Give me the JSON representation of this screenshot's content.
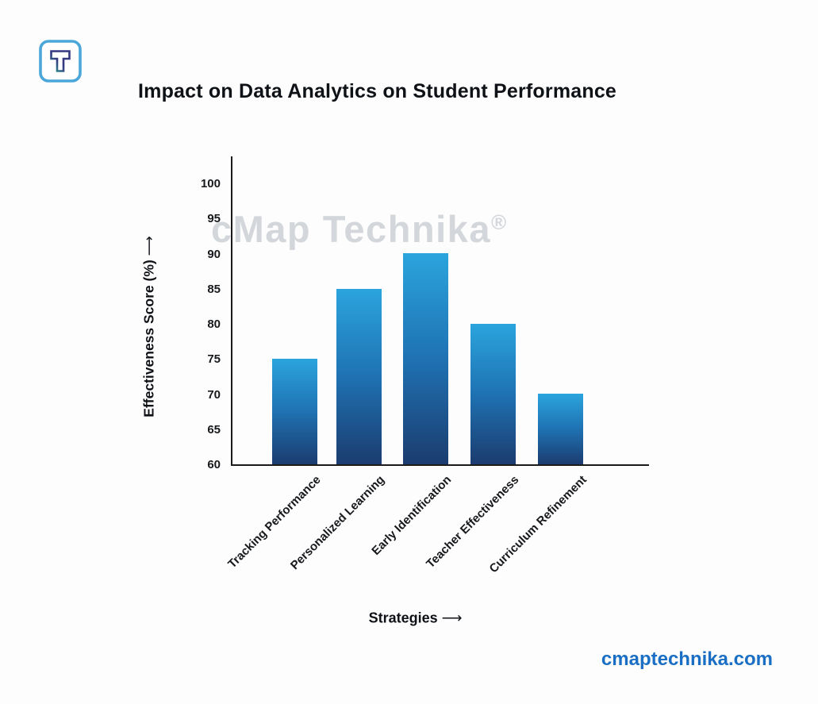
{
  "brand": {
    "logo_icon": "cmap-technika-logo",
    "watermark_text": "cMap Technika",
    "watermark_mark": "®",
    "website": "cmaptechnika.com"
  },
  "heading": {
    "title": "Impact on Data Analytics on Student Performance"
  },
  "axes": {
    "arrow": "⟶"
  },
  "chart_data": {
    "type": "bar",
    "title": "Impact on Data Analytics on Student Performance",
    "categories": [
      "Tracking Performance",
      "Personalized Learning",
      "Early Identification",
      "Teacher Effectiveness",
      "Curriculum Refinement"
    ],
    "values": [
      75,
      85,
      90,
      80,
      70
    ],
    "xlabel": "Strategies",
    "ylabel": "Effectiveness Score (%)",
    "ylim": [
      60,
      104
    ],
    "yticks": [
      100,
      95,
      90,
      85,
      80,
      75,
      70,
      65,
      60
    ],
    "grid": false,
    "legend": false,
    "bar_color_top": "#2BA4DD",
    "bar_color_mid": "#1F74B5",
    "bar_color_bottom": "#1B3C6F",
    "axis_color": "#1B1B1B",
    "watermark": "cMap Technika®"
  },
  "colors": {
    "background": "#FDFDFD",
    "link_blue": "#1A6FC4",
    "watermark_gray": "#D3D6DA",
    "logo_border": "#4BA7D9",
    "logo_navy": "#34387F",
    "logo_teal": "#2BA392"
  }
}
